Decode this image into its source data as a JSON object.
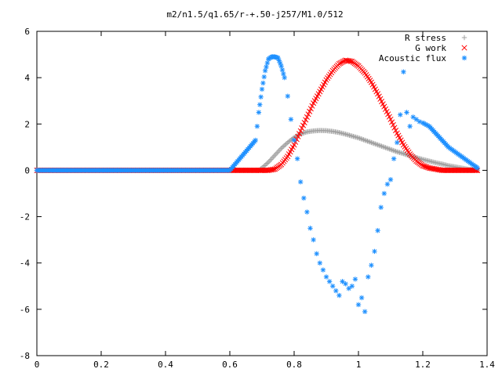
{
  "chart_data": {
    "type": "scatter",
    "title": "m2/n1.5/q1.65/r-+.50-j257/M1.0/512",
    "xlabel": "",
    "ylabel": "",
    "xlim": [
      0,
      1.4
    ],
    "ylim": [
      -8,
      6
    ],
    "xticks": [
      "0",
      "0.2",
      "0.4",
      "0.6",
      "0.8",
      "1",
      "1.2",
      "1.4"
    ],
    "yticks": [
      "-8",
      "-6",
      "-4",
      "-2",
      "0",
      "2",
      "4",
      "6"
    ],
    "grid": false,
    "legend_position": "top-right",
    "series": [
      {
        "name": "R stress",
        "marker": "plus",
        "color": "#a0a0a0",
        "x": [
          0.0,
          0.1,
          0.2,
          0.3,
          0.4,
          0.5,
          0.6,
          0.69,
          0.7,
          0.72,
          0.74,
          0.76,
          0.78,
          0.8,
          0.82,
          0.84,
          0.86,
          0.88,
          0.9,
          0.92,
          0.94,
          0.96,
          0.98,
          1.0,
          1.02,
          1.04,
          1.06,
          1.08,
          1.1,
          1.12,
          1.14,
          1.16,
          1.18,
          1.2,
          1.22,
          1.24,
          1.26,
          1.28,
          1.3,
          1.32,
          1.34,
          1.36,
          1.37
        ],
        "y": [
          0,
          0,
          0,
          0,
          0,
          0,
          0,
          0.0,
          0.1,
          0.35,
          0.65,
          0.95,
          1.2,
          1.42,
          1.57,
          1.66,
          1.7,
          1.72,
          1.71,
          1.68,
          1.63,
          1.56,
          1.48,
          1.4,
          1.3,
          1.2,
          1.1,
          1.0,
          0.9,
          0.8,
          0.72,
          0.62,
          0.55,
          0.47,
          0.4,
          0.33,
          0.27,
          0.2,
          0.15,
          0.1,
          0.05,
          0.02,
          0.0
        ]
      },
      {
        "name": "G work",
        "marker": "cross",
        "color": "#ff0000",
        "x": [
          0.0,
          0.1,
          0.2,
          0.3,
          0.4,
          0.5,
          0.6,
          0.69,
          0.7,
          0.72,
          0.74,
          0.76,
          0.78,
          0.8,
          0.82,
          0.84,
          0.86,
          0.88,
          0.9,
          0.92,
          0.94,
          0.96,
          0.98,
          1.0,
          1.02,
          1.04,
          1.06,
          1.08,
          1.1,
          1.12,
          1.14,
          1.16,
          1.18,
          1.2,
          1.22,
          1.24,
          1.26,
          1.28,
          1.3,
          1.32,
          1.34,
          1.36,
          1.37
        ],
        "y": [
          0,
          0,
          0,
          0,
          0,
          0,
          0,
          0.0,
          0.0,
          0.0,
          0.05,
          0.25,
          0.6,
          1.1,
          1.7,
          2.3,
          2.9,
          3.4,
          3.9,
          4.3,
          4.6,
          4.75,
          4.7,
          4.5,
          4.2,
          3.8,
          3.3,
          2.75,
          2.2,
          1.6,
          1.1,
          0.7,
          0.4,
          0.2,
          0.1,
          0.05,
          0.0,
          0.0,
          0.0,
          0.0,
          0.0,
          0.0,
          0.0
        ]
      },
      {
        "name": "Acoustic flux",
        "marker": "star",
        "color": "#1e90ff",
        "x": [
          0.0,
          0.1,
          0.2,
          0.3,
          0.4,
          0.5,
          0.6,
          0.68,
          0.69,
          0.7,
          0.71,
          0.72,
          0.73,
          0.74,
          0.75,
          0.76,
          0.77,
          0.78,
          0.79,
          0.8,
          0.81,
          0.82,
          0.83,
          0.84,
          0.85,
          0.86,
          0.87,
          0.88,
          0.89,
          0.9,
          0.91,
          0.92,
          0.93,
          0.94,
          0.95,
          0.96,
          0.97,
          0.98,
          0.99,
          1.0,
          1.01,
          1.02,
          1.03,
          1.04,
          1.05,
          1.06,
          1.07,
          1.08,
          1.09,
          1.1,
          1.11,
          1.12,
          1.13,
          1.14,
          1.15,
          1.16,
          1.17,
          1.18,
          1.19,
          1.2,
          1.22,
          1.24,
          1.26,
          1.28,
          1.3,
          1.32,
          1.34,
          1.36,
          1.37
        ],
        "y": [
          0,
          0,
          0,
          0,
          0,
          0,
          0,
          1.3,
          2.5,
          3.5,
          4.3,
          4.8,
          4.9,
          4.9,
          4.85,
          4.5,
          4.0,
          3.2,
          2.2,
          1.3,
          0.5,
          -0.5,
          -1.2,
          -1.8,
          -2.5,
          -3.0,
          -3.6,
          -4.0,
          -4.3,
          -4.6,
          -4.8,
          -5.0,
          -5.2,
          -5.4,
          -4.8,
          -4.9,
          -5.1,
          -5.0,
          -4.7,
          -5.8,
          -5.5,
          -6.1,
          -4.6,
          -4.1,
          -3.5,
          -2.6,
          -1.6,
          -1.0,
          -0.6,
          -0.4,
          0.5,
          1.2,
          2.4,
          4.25,
          2.5,
          1.9,
          2.3,
          2.2,
          2.1,
          2.05,
          1.9,
          1.6,
          1.3,
          1.0,
          0.8,
          0.6,
          0.4,
          0.2,
          0.1
        ]
      }
    ]
  }
}
